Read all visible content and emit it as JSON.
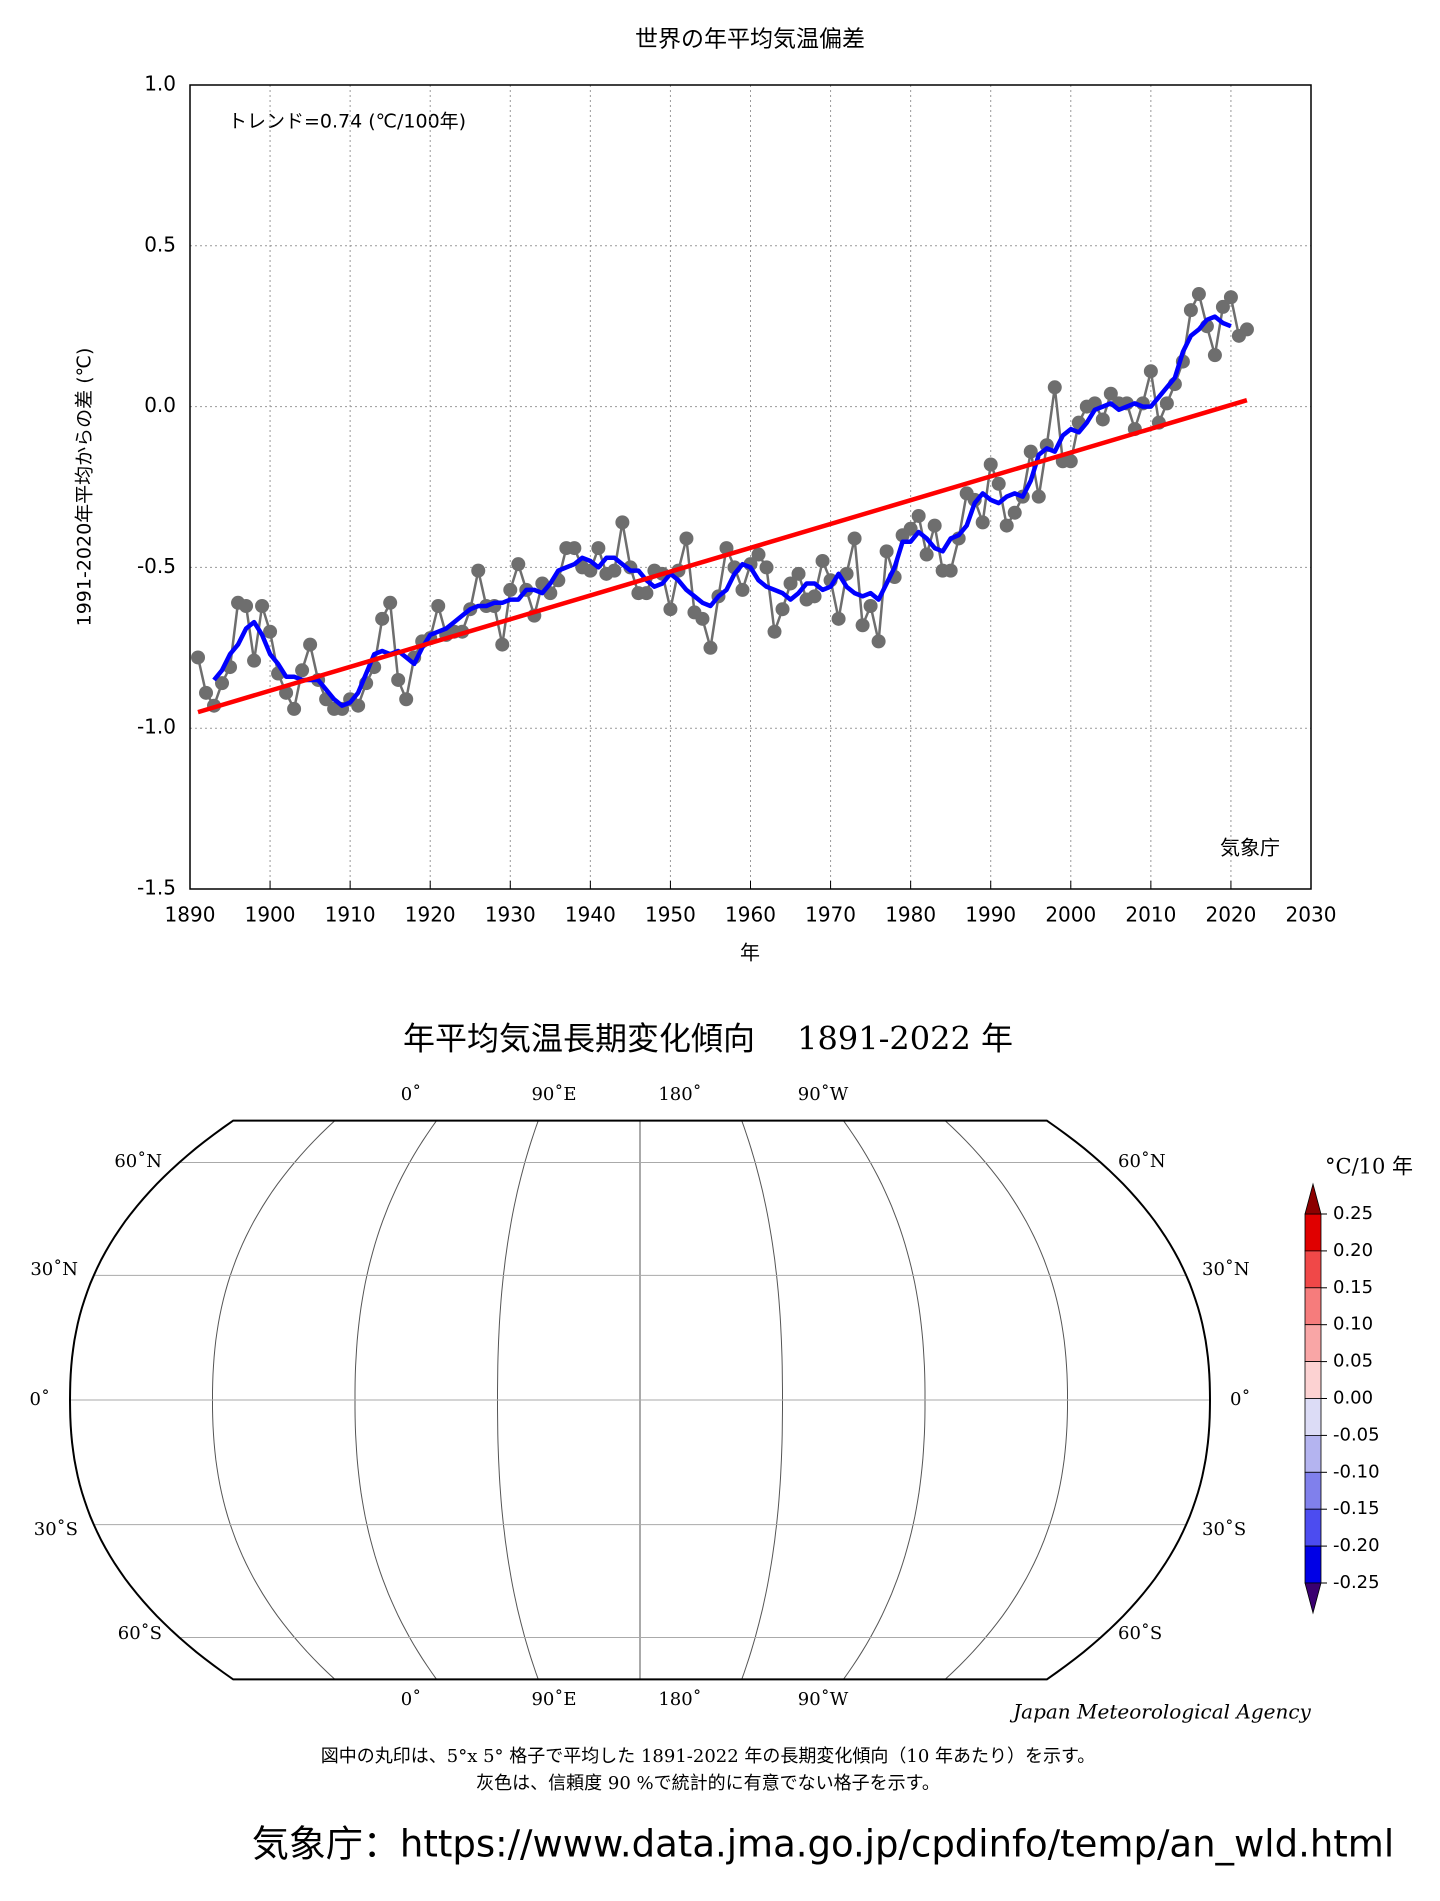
{
  "chart_data": [
    {
      "type": "line",
      "title": "世界の年平均気温偏差",
      "annotation": "トレンド=0.74 (℃/100年)",
      "source": "気象庁",
      "ylabel": "1991-2020年平均からの差 (℃)",
      "xlabel": "年",
      "xlim": [
        1890,
        2030
      ],
      "xticks": [
        1890,
        1900,
        1910,
        1920,
        1930,
        1940,
        1950,
        1960,
        1970,
        1980,
        1990,
        2000,
        2010,
        2020,
        2030
      ],
      "ylim": [
        -1.5,
        1.0
      ],
      "yticks": [
        {
          "value": -1.5,
          "label": "-1.5"
        },
        {
          "value": -1.0,
          "label": "-1.0"
        },
        -0.5,
        {
          "value": 0,
          "label": "0.0"
        },
        0.5,
        {
          "value": 1.0,
          "label": "1.0"
        }
      ],
      "grid": true,
      "series": [
        {
          "color": "#6e6e6e",
          "markers": true,
          "x": [
            1891,
            1892,
            1893,
            1894,
            1895,
            1896,
            1897,
            1898,
            1899,
            1900,
            1901,
            1902,
            1903,
            1904,
            1905,
            1906,
            1907,
            1908,
            1909,
            1910,
            1911,
            1912,
            1913,
            1914,
            1915,
            1916,
            1917,
            1918,
            1919,
            1920,
            1921,
            1922,
            1923,
            1924,
            1925,
            1926,
            1927,
            1928,
            1929,
            1930,
            1931,
            1932,
            1933,
            1934,
            1935,
            1936,
            1937,
            1938,
            1939,
            1940,
            1941,
            1942,
            1943,
            1944,
            1945,
            1946,
            1947,
            1948,
            1949,
            1950,
            1951,
            1952,
            1953,
            1954,
            1955,
            1956,
            1957,
            1958,
            1959,
            1960,
            1961,
            1962,
            1963,
            1964,
            1965,
            1966,
            1967,
            1968,
            1969,
            1970,
            1971,
            1972,
            1973,
            1974,
            1975,
            1976,
            1977,
            1978,
            1979,
            1980,
            1981,
            1982,
            1983,
            1984,
            1985,
            1986,
            1987,
            1988,
            1989,
            1990,
            1991,
            1992,
            1993,
            1994,
            1995,
            1996,
            1997,
            1998,
            1999,
            2000,
            2001,
            2002,
            2003,
            2004,
            2005,
            2006,
            2007,
            2008,
            2009,
            2010,
            2011,
            2012,
            2013,
            2014,
            2015,
            2016,
            2017,
            2018,
            2019,
            2020,
            2021,
            2022
          ],
          "values": [
            -0.78,
            -0.89,
            -0.93,
            -0.86,
            -0.81,
            -0.61,
            -0.62,
            -0.79,
            -0.62,
            -0.7,
            -0.83,
            -0.89,
            -0.94,
            -0.82,
            -0.74,
            -0.85,
            -0.91,
            -0.94,
            -0.94,
            -0.91,
            -0.93,
            -0.86,
            -0.81,
            -0.66,
            -0.61,
            -0.85,
            -0.91,
            -0.78,
            -0.73,
            -0.72,
            -0.62,
            -0.71,
            -0.7,
            -0.7,
            -0.63,
            -0.51,
            -0.62,
            -0.62,
            -0.74,
            -0.57,
            -0.49,
            -0.57,
            -0.65,
            -0.55,
            -0.58,
            -0.54,
            -0.44,
            -0.44,
            -0.5,
            -0.51,
            -0.44,
            -0.52,
            -0.51,
            -0.36,
            -0.5,
            -0.58,
            -0.58,
            -0.51,
            -0.52,
            -0.63,
            -0.51,
            -0.41,
            -0.64,
            -0.66,
            -0.75,
            -0.59,
            -0.44,
            -0.5,
            -0.57,
            -0.49,
            -0.46,
            -0.5,
            -0.7,
            -0.63,
            -0.55,
            -0.52,
            -0.6,
            -0.59,
            -0.48,
            -0.54,
            -0.66,
            -0.52,
            -0.41,
            -0.68,
            -0.62,
            -0.73,
            -0.45,
            -0.53,
            -0.4,
            -0.38,
            -0.34,
            -0.46,
            -0.37,
            -0.51,
            -0.51,
            -0.41,
            -0.27,
            -0.29,
            -0.36,
            -0.18,
            -0.24,
            -0.37,
            -0.33,
            -0.28,
            -0.14,
            -0.28,
            -0.12,
            0.06,
            -0.17,
            -0.17,
            -0.05,
            0.0,
            0.01,
            -0.04,
            0.04,
            0.01,
            0.01,
            -0.07,
            0.01,
            0.11,
            -0.05,
            0.01,
            0.07,
            0.14,
            0.3,
            0.35,
            0.25,
            0.16,
            0.31,
            0.34,
            0.22,
            0.24
          ]
        },
        {
          "color": "#0000ff",
          "markers": false,
          "x": [
            1893,
            1894,
            1895,
            1896,
            1897,
            1898,
            1899,
            1900,
            1901,
            1902,
            1903,
            1904,
            1905,
            1906,
            1907,
            1908,
            1909,
            1910,
            1911,
            1912,
            1913,
            1914,
            1915,
            1916,
            1917,
            1918,
            1919,
            1920,
            1921,
            1922,
            1923,
            1924,
            1925,
            1926,
            1927,
            1928,
            1929,
            1930,
            1931,
            1932,
            1933,
            1934,
            1935,
            1936,
            1937,
            1938,
            1939,
            1940,
            1941,
            1942,
            1943,
            1944,
            1945,
            1946,
            1947,
            1948,
            1949,
            1950,
            1951,
            1952,
            1953,
            1954,
            1955,
            1956,
            1957,
            1958,
            1959,
            1960,
            1961,
            1962,
            1963,
            1964,
            1965,
            1966,
            1967,
            1968,
            1969,
            1970,
            1971,
            1972,
            1973,
            1974,
            1975,
            1976,
            1977,
            1978,
            1979,
            1980,
            1981,
            1982,
            1983,
            1984,
            1985,
            1986,
            1987,
            1988,
            1989,
            1990,
            1991,
            1992,
            1993,
            1994,
            1995,
            1996,
            1997,
            1998,
            1999,
            2000,
            2001,
            2002,
            2003,
            2004,
            2005,
            2006,
            2007,
            2008,
            2009,
            2010,
            2011,
            2012,
            2013,
            2014,
            2015,
            2016,
            2017,
            2018,
            2019,
            2020
          ],
          "values": [
            -0.85,
            -0.82,
            -0.77,
            -0.74,
            -0.69,
            -0.67,
            -0.71,
            -0.77,
            -0.8,
            -0.84,
            -0.84,
            -0.85,
            -0.85,
            -0.85,
            -0.88,
            -0.91,
            -0.93,
            -0.92,
            -0.89,
            -0.83,
            -0.77,
            -0.76,
            -0.77,
            -0.76,
            -0.78,
            -0.8,
            -0.75,
            -0.71,
            -0.7,
            -0.69,
            -0.67,
            -0.65,
            -0.63,
            -0.62,
            -0.62,
            -0.61,
            -0.61,
            -0.6,
            -0.6,
            -0.57,
            -0.57,
            -0.58,
            -0.55,
            -0.51,
            -0.5,
            -0.49,
            -0.47,
            -0.48,
            -0.5,
            -0.47,
            -0.47,
            -0.49,
            -0.51,
            -0.51,
            -0.54,
            -0.56,
            -0.55,
            -0.52,
            -0.54,
            -0.57,
            -0.59,
            -0.61,
            -0.62,
            -0.59,
            -0.57,
            -0.52,
            -0.49,
            -0.5,
            -0.54,
            -0.56,
            -0.57,
            -0.58,
            -0.6,
            -0.58,
            -0.55,
            -0.55,
            -0.57,
            -0.56,
            -0.52,
            -0.56,
            -0.58,
            -0.59,
            -0.58,
            -0.6,
            -0.55,
            -0.5,
            -0.42,
            -0.42,
            -0.39,
            -0.41,
            -0.44,
            -0.45,
            -0.41,
            -0.4,
            -0.37,
            -0.3,
            -0.27,
            -0.29,
            -0.3,
            -0.28,
            -0.27,
            -0.28,
            -0.23,
            -0.15,
            -0.13,
            -0.14,
            -0.09,
            -0.07,
            -0.08,
            -0.05,
            -0.01,
            0.0,
            0.01,
            -0.01,
            0.0,
            0.01,
            0.0,
            0.0,
            0.03,
            0.06,
            0.09,
            0.17,
            0.22,
            0.24,
            0.27,
            0.28,
            0.26,
            0.25
          ]
        },
        {
          "color": "#ff0000",
          "markers": false,
          "x": [
            1891,
            2022
          ],
          "values": [
            -0.95,
            0.02
          ]
        }
      ]
    },
    {
      "type": "map",
      "title": "年平均気温長期変化傾向　 1891-2022 年",
      "lon_labels": [
        "0˚",
        "90˚E",
        "180˚",
        "90˚W"
      ],
      "lat_labels": [
        "60˚N",
        "30˚N",
        "0˚",
        "30˚S",
        "60˚S"
      ],
      "credit": "Japan Meteorological Agency",
      "colorbar": {
        "title": "°C/10 年",
        "ticks": [
          0.25,
          {
            "value": 0.2,
            "label": "0.20"
          },
          0.15,
          {
            "value": 0.1,
            "label": "0.10"
          },
          0.05,
          {
            "value": 0,
            "label": "0.00"
          },
          -0.05,
          {
            "value": -0.1,
            "label": "-0.10"
          },
          -0.15,
          {
            "value": -0.2,
            "label": "-0.20"
          },
          -0.25
        ],
        "colors": [
          "#e00000",
          "#f04848",
          "#f67c7c",
          "#f9a6a6",
          "#fcd2d2",
          "#dcdcf6",
          "#b4b4f0",
          "#8080ec",
          "#4c4cf0",
          "#0000e6"
        ],
        "over_color": "#8c0000",
        "under_color": "#3a0070"
      }
    }
  ],
  "caption": [
    "図中の丸印は、5°x 5° 格子で平均した 1891-2022 年の長期変化傾向（10 年あたり）を示す。",
    "灰色は、信頼度 90 %で統計的に有意でない格子を示す。"
  ],
  "footer": "気象庁：https://www.data.jma.go.jp/cpdinfo/temp/an_wld.html"
}
